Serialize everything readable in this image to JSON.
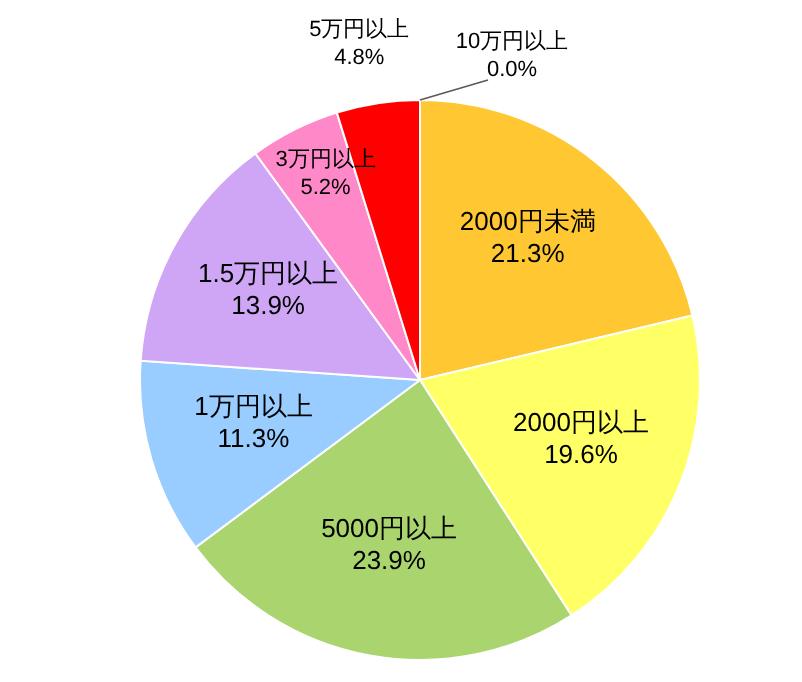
{
  "chart_data": {
    "type": "pie",
    "categories": [
      "2000円未満",
      "2000円以上",
      "5000円以上",
      "1万円以上",
      "1.5万円以上",
      "3万円以上",
      "5万円以上",
      "10万円以上"
    ],
    "values": [
      21.3,
      19.6,
      23.9,
      11.3,
      13.9,
      5.2,
      4.8,
      0.0
    ],
    "value_labels": [
      "21.3%",
      "19.6%",
      "23.9%",
      "11.3%",
      "13.9%",
      "5.2%",
      "4.8%",
      "0.0%"
    ],
    "colors": [
      "#ffc832",
      "#ffff66",
      "#a9d46e",
      "#99ccff",
      "#cfa6f5",
      "#ff88c8",
      "#ff0000",
      "#595959"
    ]
  }
}
